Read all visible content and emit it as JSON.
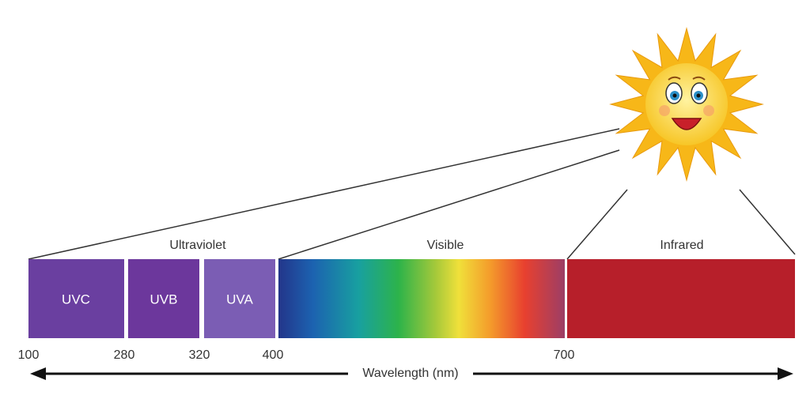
{
  "groups": [
    "Ultraviolet",
    "Visible",
    "Infrared"
  ],
  "segments": [
    "UVC",
    "UVB",
    "UVA"
  ],
  "ticks": [
    "100",
    "280",
    "320",
    "400",
    "700"
  ],
  "axis_label": "Wavelength (nm)"
}
